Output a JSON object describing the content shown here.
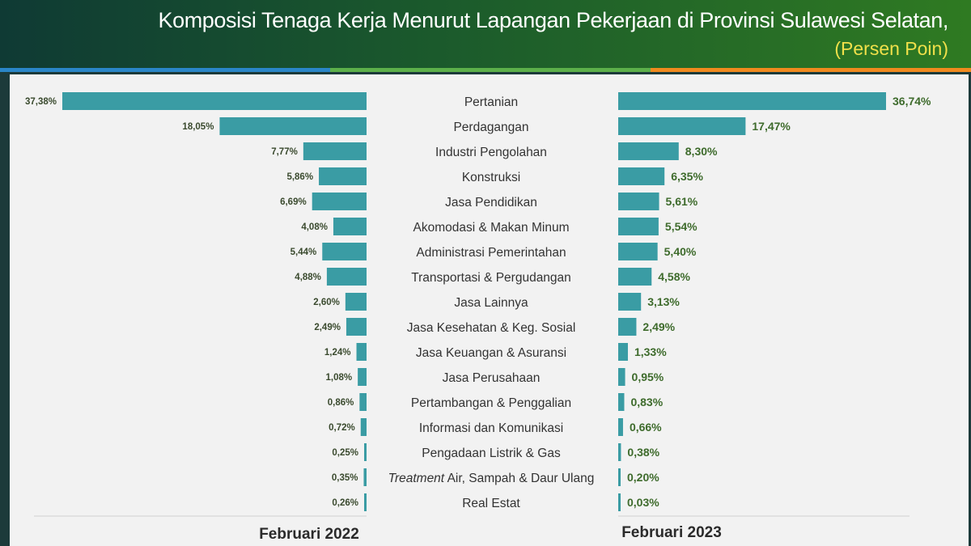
{
  "header": {
    "title": "Komposisi Tenaga Kerja Menurut Lapangan Pekerjaan di Provinsi Sulawesi Selatan,",
    "subtitle": "(Persen Poin)"
  },
  "colors": {
    "bar": "#3a9ca4",
    "header_bg": "#1b5a2c",
    "subtitle": "#f0e04a",
    "value_right": "#3e6b2c"
  },
  "chart_data": {
    "type": "bar",
    "title": "Komposisi Tenaga Kerja Menurut Lapangan Pekerjaan di Provinsi Sulawesi Selatan, (Persen Poin)",
    "categories": [
      "Pertanian",
      "Perdagangan",
      "Industri Pengolahan",
      "Konstruksi",
      "Jasa Pendidikan",
      "Akomodasi & Makan Minum",
      "Administrasi Pemerintahan",
      "Transportasi & Pergudangan",
      "Jasa Lainnya",
      "Jasa Kesehatan & Keg. Sosial",
      "Jasa Keuangan & Asuransi",
      "Jasa Perusahaan",
      "Pertambangan & Penggalian",
      "Informasi dan Komunikasi",
      "Pengadaan Listrik & Gas",
      "Treatment Air, Sampah & Daur Ulang",
      "Real Estat"
    ],
    "series": [
      {
        "name": "Februari 2022",
        "values": [
          37.38,
          18.05,
          7.77,
          5.86,
          6.69,
          4.08,
          5.44,
          4.88,
          2.6,
          2.49,
          1.24,
          1.08,
          0.86,
          0.72,
          0.25,
          0.35,
          0.26
        ],
        "labels": [
          "37,38%",
          "18,05%",
          "7,77%",
          "5,86%",
          "6,69%",
          "4,08%",
          "5,44%",
          "4,88%",
          "2,60%",
          "2,49%",
          "1,24%",
          "1,08%",
          "0,86%",
          "0,72%",
          "0,25%",
          "0,35%",
          "0,26%"
        ]
      },
      {
        "name": "Februari 2023",
        "values": [
          36.74,
          17.47,
          8.3,
          6.35,
          5.61,
          5.54,
          5.4,
          4.58,
          3.13,
          2.49,
          1.33,
          0.95,
          0.83,
          0.66,
          0.38,
          0.2,
          0.03
        ],
        "labels": [
          "36,74%",
          "17,47%",
          "8,30%",
          "6,35%",
          "5,61%",
          "5,54%",
          "5,40%",
          "4,58%",
          "3,13%",
          "2,49%",
          "1,33%",
          "0,95%",
          "0,83%",
          "0,66%",
          "0,38%",
          "0,20%",
          "0,03%"
        ]
      }
    ],
    "layout": "butterfly",
    "grid": false,
    "value_labels": true
  }
}
